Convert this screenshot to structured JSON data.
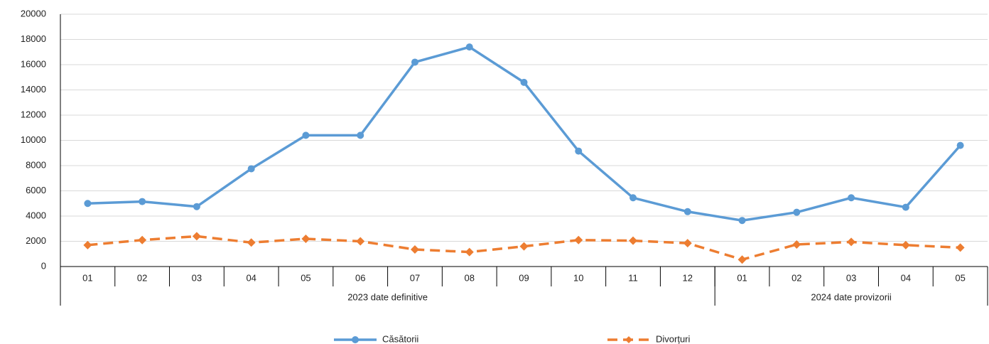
{
  "chart_data": {
    "type": "line",
    "categories": [
      "01",
      "02",
      "03",
      "04",
      "05",
      "06",
      "07",
      "08",
      "09",
      "10",
      "11",
      "12",
      "01",
      "02",
      "03",
      "04",
      "05"
    ],
    "groups": [
      {
        "label": "2023 date definitive",
        "count": 12
      },
      {
        "label": "2024 date provizorii",
        "count": 5
      }
    ],
    "series": [
      {
        "name": "Căsătorii",
        "color": "#5b9bd5",
        "marker": "circle",
        "linestyle": "solid",
        "values": [
          5000,
          5150,
          4750,
          7750,
          10400,
          10400,
          16200,
          17400,
          14600,
          9150,
          5450,
          4350,
          3650,
          4300,
          5450,
          4700,
          9600
        ]
      },
      {
        "name": "Divorțuri",
        "color": "#ed7d31",
        "marker": "diamond",
        "linestyle": "dashed",
        "values": [
          1700,
          2100,
          2400,
          1900,
          2200,
          2000,
          1350,
          1150,
          1600,
          2100,
          2050,
          1850,
          550,
          1750,
          1950,
          1700,
          1500
        ]
      }
    ],
    "ylim": [
      0,
      20000
    ],
    "yticks": [
      0,
      2000,
      4000,
      6000,
      8000,
      10000,
      12000,
      14000,
      16000,
      18000,
      20000
    ],
    "grid": true,
    "legend": "bottom"
  }
}
